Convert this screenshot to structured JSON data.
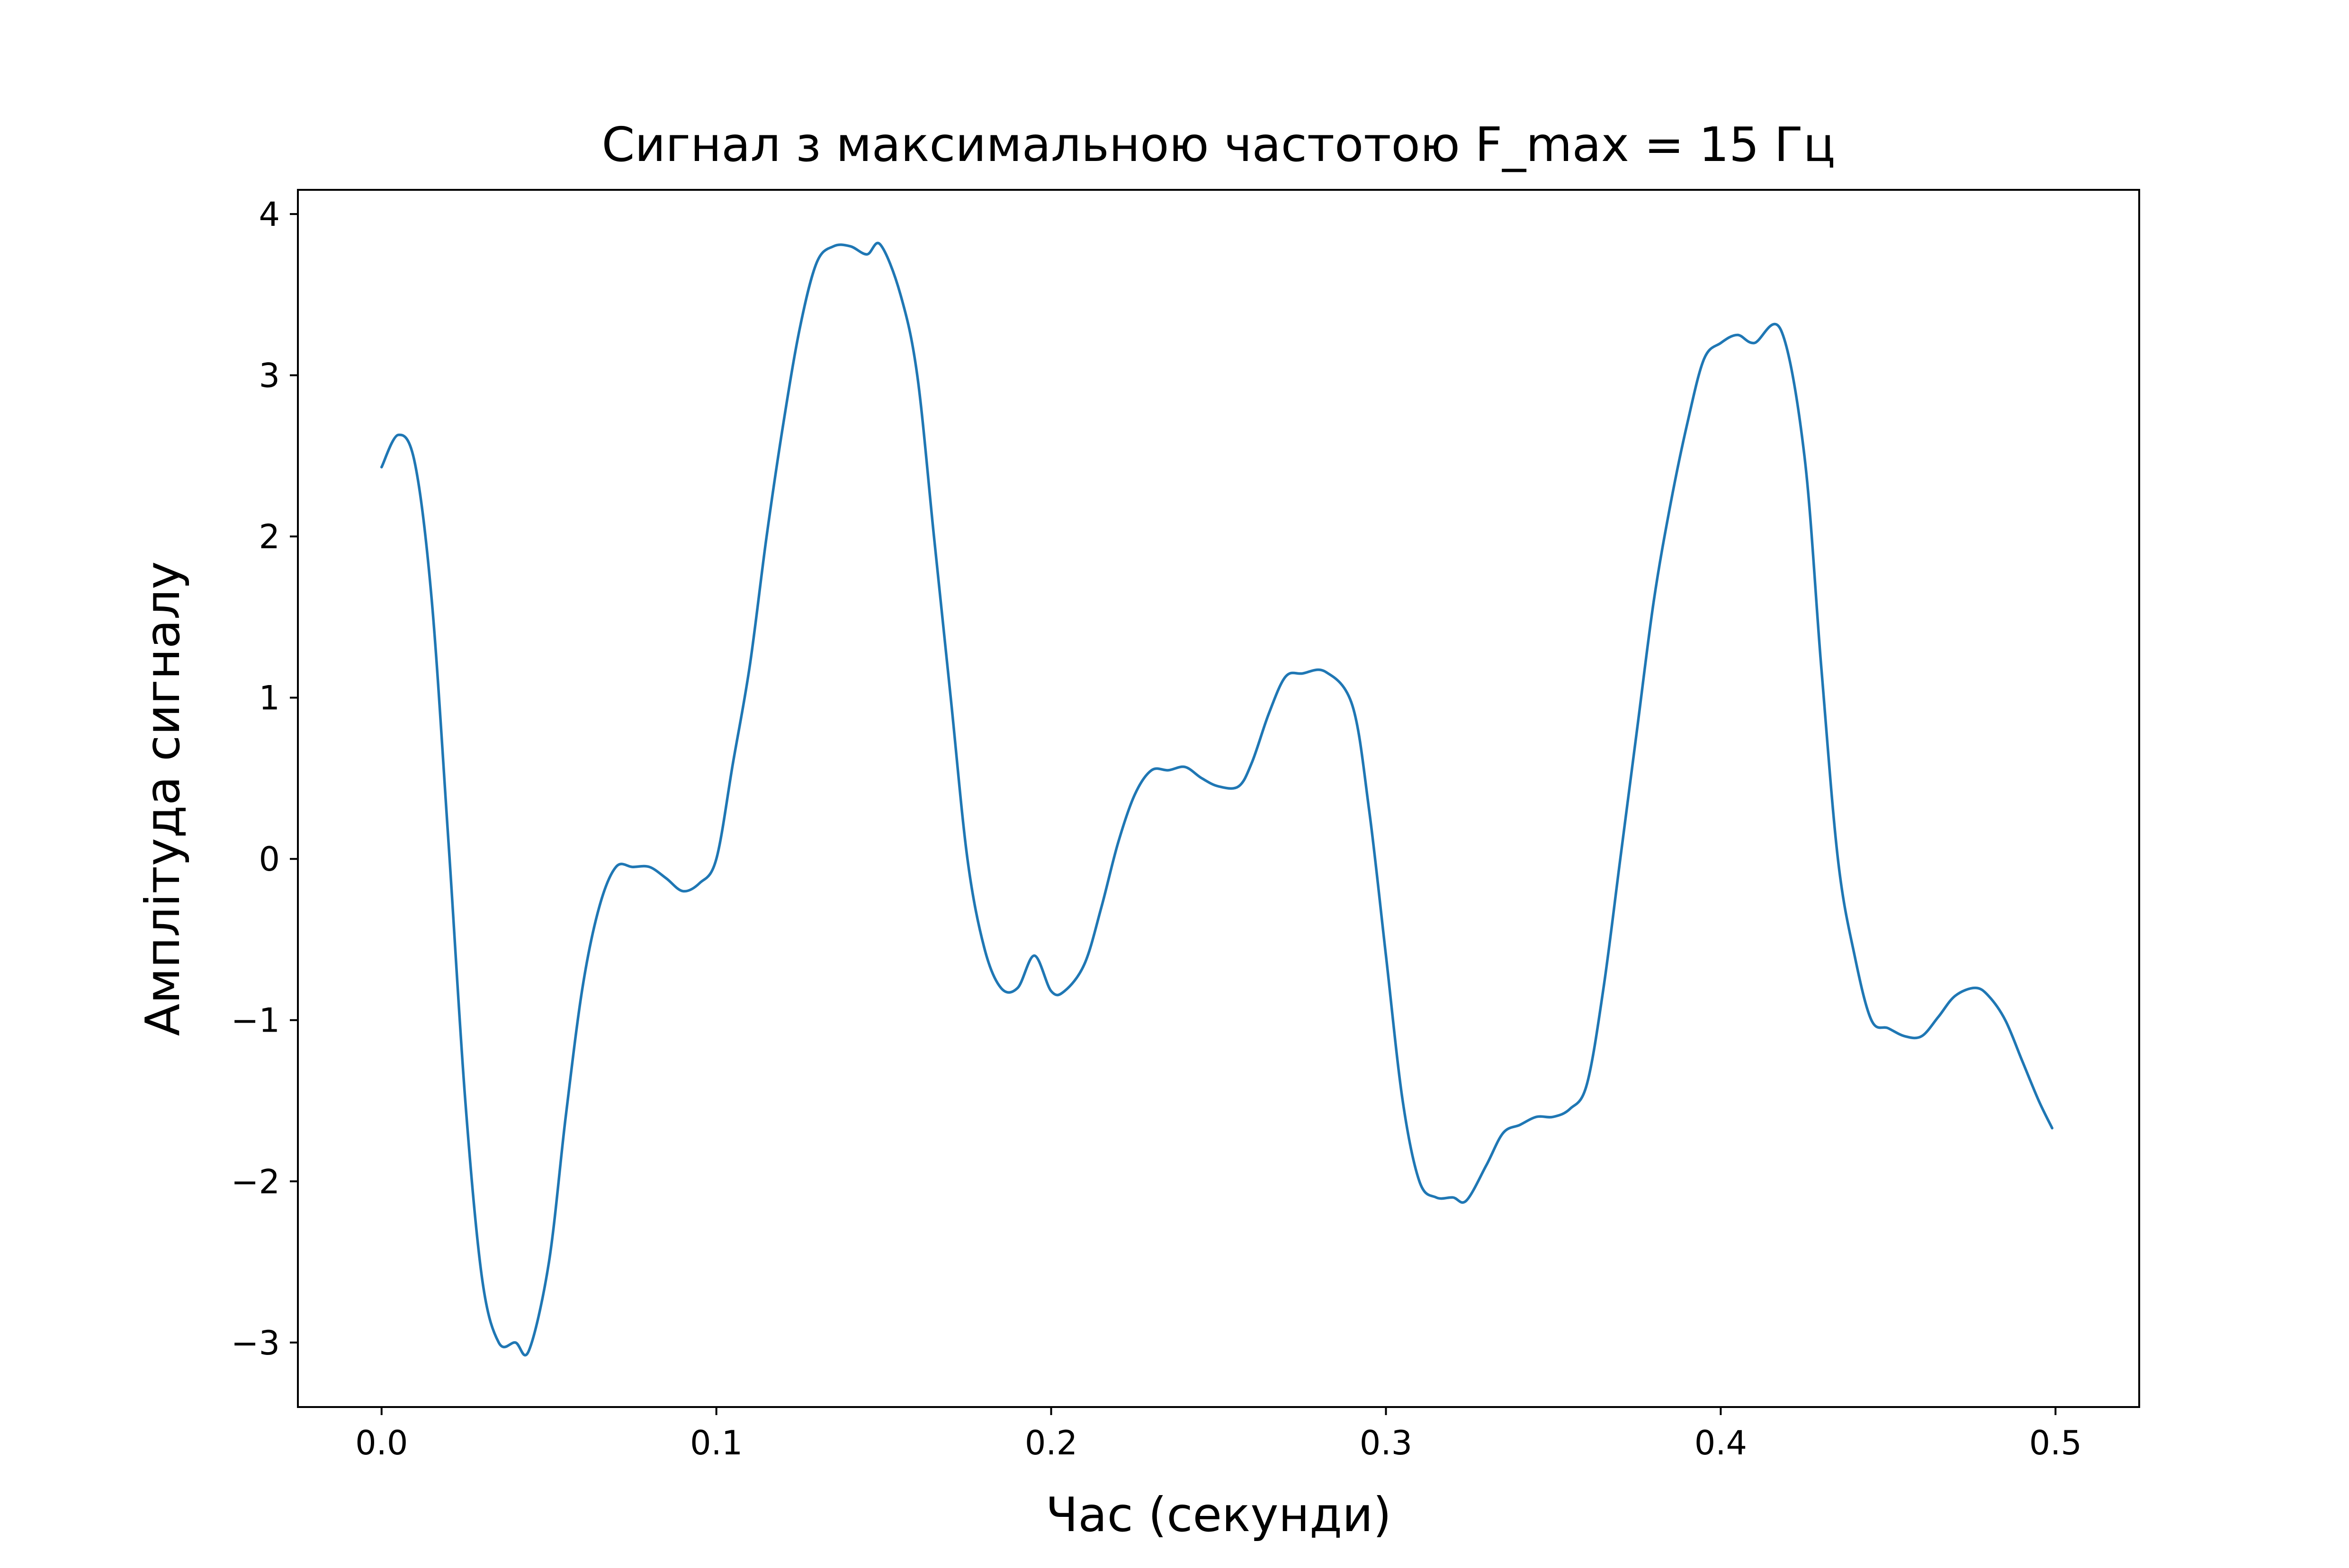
{
  "chart_data": {
    "type": "line",
    "title": "Сигнал з максимальною частотою F_max = 15 Гц",
    "xlabel": "Час (секунди)",
    "ylabel": "Амплітуда сигналу",
    "xlim": [
      -0.025,
      0.525
    ],
    "ylim": [
      -3.4,
      4.15
    ],
    "x_ticks": [
      0.0,
      0.1,
      0.2,
      0.3,
      0.4,
      0.5
    ],
    "x_tick_labels": [
      "0.0",
      "0.1",
      "0.2",
      "0.3",
      "0.4",
      "0.5"
    ],
    "y_ticks": [
      -3,
      -2,
      -1,
      0,
      1,
      2,
      3,
      4
    ],
    "y_tick_labels": [
      "−3",
      "−2",
      "−1",
      "0",
      "1",
      "2",
      "3",
      "4"
    ],
    "grid": false,
    "line_color": "#1f77b4",
    "series": [
      {
        "x": [
          0.0,
          0.005,
          0.01,
          0.015,
          0.02,
          0.025,
          0.03,
          0.035,
          0.04,
          0.044,
          0.05,
          0.055,
          0.06,
          0.065,
          0.07,
          0.075,
          0.08,
          0.085,
          0.09,
          0.095,
          0.1,
          0.105,
          0.11,
          0.115,
          0.12,
          0.125,
          0.13,
          0.135,
          0.14,
          0.145,
          0.149,
          0.155,
          0.16,
          0.165,
          0.17,
          0.175,
          0.18,
          0.185,
          0.19,
          0.195,
          0.2,
          0.204,
          0.21,
          0.215,
          0.22,
          0.225,
          0.23,
          0.235,
          0.24,
          0.245,
          0.25,
          0.256,
          0.26,
          0.265,
          0.27,
          0.275,
          0.282,
          0.29,
          0.295,
          0.3,
          0.305,
          0.31,
          0.315,
          0.32,
          0.324,
          0.33,
          0.335,
          0.34,
          0.345,
          0.35,
          0.355,
          0.36,
          0.365,
          0.37,
          0.375,
          0.38,
          0.385,
          0.39,
          0.395,
          0.4,
          0.405,
          0.41,
          0.418,
          0.425,
          0.43,
          0.435,
          0.44,
          0.445,
          0.45,
          0.455,
          0.46,
          0.465,
          0.47,
          0.476,
          0.48,
          0.485,
          0.49,
          0.495,
          0.499
        ],
        "y": [
          2.43,
          2.63,
          2.45,
          1.6,
          0.1,
          -1.5,
          -2.6,
          -3.0,
          -3.0,
          -3.05,
          -2.5,
          -1.6,
          -0.8,
          -0.3,
          -0.05,
          -0.05,
          -0.05,
          -0.12,
          -0.2,
          -0.15,
          0.0,
          0.6,
          1.2,
          2.0,
          2.7,
          3.3,
          3.7,
          3.8,
          3.8,
          3.75,
          3.81,
          3.5,
          3.0,
          2.0,
          1.0,
          0.0,
          -0.55,
          -0.8,
          -0.8,
          -0.6,
          -0.82,
          -0.82,
          -0.65,
          -0.3,
          0.1,
          0.4,
          0.55,
          0.55,
          0.57,
          0.5,
          0.45,
          0.45,
          0.6,
          0.9,
          1.13,
          1.15,
          1.16,
          0.95,
          0.3,
          -0.6,
          -1.5,
          -2.0,
          -2.1,
          -2.1,
          -2.12,
          -1.9,
          -1.7,
          -1.65,
          -1.6,
          -1.6,
          -1.55,
          -1.4,
          -0.8,
          0.0,
          0.8,
          1.6,
          2.2,
          2.7,
          3.1,
          3.2,
          3.25,
          3.2,
          3.28,
          2.5,
          1.2,
          0.0,
          -0.6,
          -1.0,
          -1.05,
          -1.1,
          -1.1,
          -0.98,
          -0.85,
          -0.8,
          -0.85,
          -1.0,
          -1.25,
          -1.5,
          -1.67
        ]
      }
    ]
  }
}
